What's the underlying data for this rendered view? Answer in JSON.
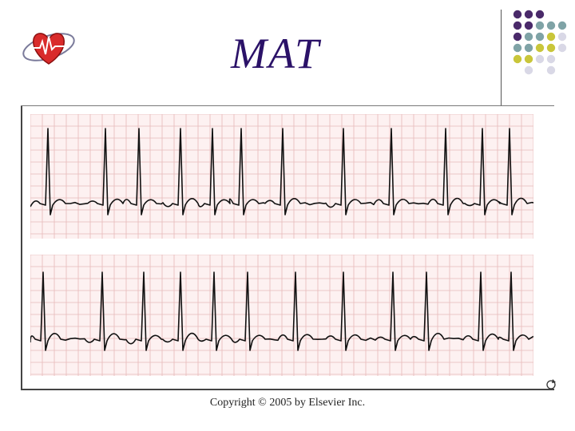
{
  "slide": {
    "title": "MAT",
    "copyright": "Copyright © 2005 by Elsevier Inc."
  },
  "colors": {
    "title": "#2b1268",
    "grid_background": "#fdf1f1",
    "grid_line": "#e6b9b9",
    "trace": "#111111",
    "dot_purple": "#4a2a6a",
    "dot_teal": "#7fa3a6",
    "dot_yellow": "#c9c63a",
    "dot_lavender": "#d9d8e6"
  },
  "icons": {
    "logo": "heart-logo-icon",
    "corner_mark": "rotate-mark-icon"
  }
}
